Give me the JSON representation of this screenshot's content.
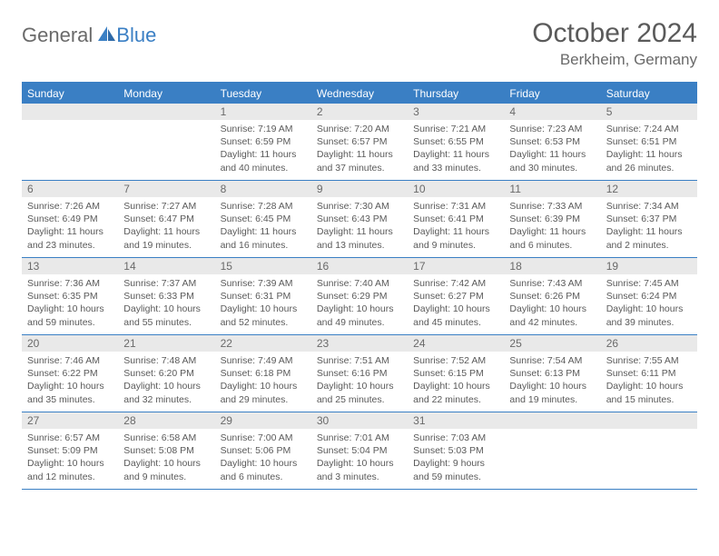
{
  "logo": {
    "text1": "General",
    "text2": "Blue"
  },
  "title": "October 2024",
  "location": "Berkheim, Germany",
  "day_headers": [
    "Sunday",
    "Monday",
    "Tuesday",
    "Wednesday",
    "Thursday",
    "Friday",
    "Saturday"
  ],
  "colors": {
    "accent": "#3a7fc4",
    "header_bg": "#e9e9e9",
    "text": "#5a5a5a",
    "bg": "#ffffff"
  },
  "leading_blanks": 2,
  "days": [
    {
      "n": 1,
      "sunrise": "7:19 AM",
      "sunset": "6:59 PM",
      "daylight": "11 hours and 40 minutes."
    },
    {
      "n": 2,
      "sunrise": "7:20 AM",
      "sunset": "6:57 PM",
      "daylight": "11 hours and 37 minutes."
    },
    {
      "n": 3,
      "sunrise": "7:21 AM",
      "sunset": "6:55 PM",
      "daylight": "11 hours and 33 minutes."
    },
    {
      "n": 4,
      "sunrise": "7:23 AM",
      "sunset": "6:53 PM",
      "daylight": "11 hours and 30 minutes."
    },
    {
      "n": 5,
      "sunrise": "7:24 AM",
      "sunset": "6:51 PM",
      "daylight": "11 hours and 26 minutes."
    },
    {
      "n": 6,
      "sunrise": "7:26 AM",
      "sunset": "6:49 PM",
      "daylight": "11 hours and 23 minutes."
    },
    {
      "n": 7,
      "sunrise": "7:27 AM",
      "sunset": "6:47 PM",
      "daylight": "11 hours and 19 minutes."
    },
    {
      "n": 8,
      "sunrise": "7:28 AM",
      "sunset": "6:45 PM",
      "daylight": "11 hours and 16 minutes."
    },
    {
      "n": 9,
      "sunrise": "7:30 AM",
      "sunset": "6:43 PM",
      "daylight": "11 hours and 13 minutes."
    },
    {
      "n": 10,
      "sunrise": "7:31 AM",
      "sunset": "6:41 PM",
      "daylight": "11 hours and 9 minutes."
    },
    {
      "n": 11,
      "sunrise": "7:33 AM",
      "sunset": "6:39 PM",
      "daylight": "11 hours and 6 minutes."
    },
    {
      "n": 12,
      "sunrise": "7:34 AM",
      "sunset": "6:37 PM",
      "daylight": "11 hours and 2 minutes."
    },
    {
      "n": 13,
      "sunrise": "7:36 AM",
      "sunset": "6:35 PM",
      "daylight": "10 hours and 59 minutes."
    },
    {
      "n": 14,
      "sunrise": "7:37 AM",
      "sunset": "6:33 PM",
      "daylight": "10 hours and 55 minutes."
    },
    {
      "n": 15,
      "sunrise": "7:39 AM",
      "sunset": "6:31 PM",
      "daylight": "10 hours and 52 minutes."
    },
    {
      "n": 16,
      "sunrise": "7:40 AM",
      "sunset": "6:29 PM",
      "daylight": "10 hours and 49 minutes."
    },
    {
      "n": 17,
      "sunrise": "7:42 AM",
      "sunset": "6:27 PM",
      "daylight": "10 hours and 45 minutes."
    },
    {
      "n": 18,
      "sunrise": "7:43 AM",
      "sunset": "6:26 PM",
      "daylight": "10 hours and 42 minutes."
    },
    {
      "n": 19,
      "sunrise": "7:45 AM",
      "sunset": "6:24 PM",
      "daylight": "10 hours and 39 minutes."
    },
    {
      "n": 20,
      "sunrise": "7:46 AM",
      "sunset": "6:22 PM",
      "daylight": "10 hours and 35 minutes."
    },
    {
      "n": 21,
      "sunrise": "7:48 AM",
      "sunset": "6:20 PM",
      "daylight": "10 hours and 32 minutes."
    },
    {
      "n": 22,
      "sunrise": "7:49 AM",
      "sunset": "6:18 PM",
      "daylight": "10 hours and 29 minutes."
    },
    {
      "n": 23,
      "sunrise": "7:51 AM",
      "sunset": "6:16 PM",
      "daylight": "10 hours and 25 minutes."
    },
    {
      "n": 24,
      "sunrise": "7:52 AM",
      "sunset": "6:15 PM",
      "daylight": "10 hours and 22 minutes."
    },
    {
      "n": 25,
      "sunrise": "7:54 AM",
      "sunset": "6:13 PM",
      "daylight": "10 hours and 19 minutes."
    },
    {
      "n": 26,
      "sunrise": "7:55 AM",
      "sunset": "6:11 PM",
      "daylight": "10 hours and 15 minutes."
    },
    {
      "n": 27,
      "sunrise": "6:57 AM",
      "sunset": "5:09 PM",
      "daylight": "10 hours and 12 minutes."
    },
    {
      "n": 28,
      "sunrise": "6:58 AM",
      "sunset": "5:08 PM",
      "daylight": "10 hours and 9 minutes."
    },
    {
      "n": 29,
      "sunrise": "7:00 AM",
      "sunset": "5:06 PM",
      "daylight": "10 hours and 6 minutes."
    },
    {
      "n": 30,
      "sunrise": "7:01 AM",
      "sunset": "5:04 PM",
      "daylight": "10 hours and 3 minutes."
    },
    {
      "n": 31,
      "sunrise": "7:03 AM",
      "sunset": "5:03 PM",
      "daylight": "9 hours and 59 minutes."
    }
  ],
  "labels": {
    "sunrise": "Sunrise:",
    "sunset": "Sunset:",
    "daylight": "Daylight:"
  }
}
